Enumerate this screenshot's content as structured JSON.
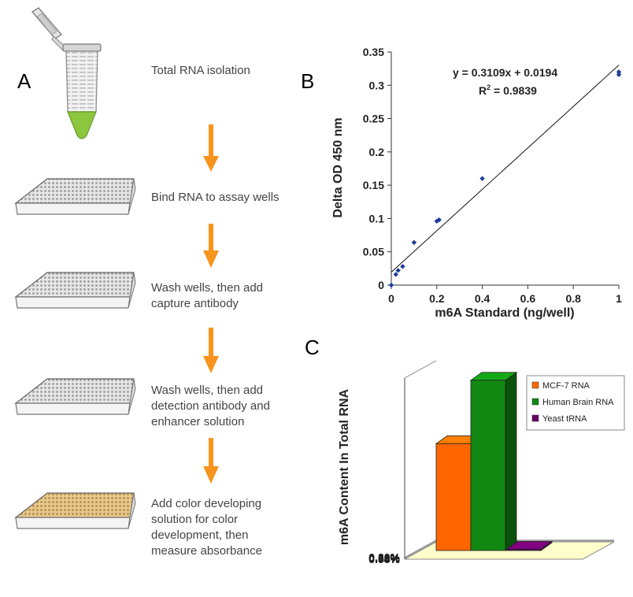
{
  "panels": {
    "a": "A",
    "b": "B",
    "c": "C"
  },
  "steps": [
    {
      "lines": [
        "Total RNA isolation"
      ]
    },
    {
      "lines": [
        "Bind RNA to assay wells"
      ]
    },
    {
      "lines": [
        "Wash wells, then add",
        "capture antibody"
      ]
    },
    {
      "lines": [
        "Wash wells, then add",
        "detection antibody and",
        "enhancer solution"
      ]
    },
    {
      "lines": [
        "Add color developing",
        "solution for color",
        "development, then",
        "measure absorbance"
      ]
    }
  ],
  "icons": [
    "microcentrifuge-tube-icon",
    "well-plate-icon",
    "down-arrow-icon"
  ],
  "colors": {
    "arrow": "#F7941D",
    "tube_liquid": "#8CC63F",
    "developed_wells": "#E8C98C",
    "scatter_points": "#1F3C99"
  },
  "chart_data": [
    {
      "type": "scatter",
      "xlabel": "m6A Standard (ng/well)",
      "ylabel": "Delta OD 450 nm",
      "xlim": [
        0,
        1
      ],
      "ylim": [
        0,
        0.35
      ],
      "xticks": [
        "0",
        "0.2",
        "0.4",
        "0.6",
        "0.8",
        "1"
      ],
      "yticks": [
        "0",
        "0.05",
        "0.1",
        "0.15",
        "0.2",
        "0.25",
        "0.3",
        "0.35"
      ],
      "points": [
        {
          "x": 0,
          "y": 0.0
        },
        {
          "x": 0.02,
          "y": 0.016
        },
        {
          "x": 0.03,
          "y": 0.022
        },
        {
          "x": 0.05,
          "y": 0.028
        },
        {
          "x": 0.1,
          "y": 0.064
        },
        {
          "x": 0.2,
          "y": 0.096
        },
        {
          "x": 0.21,
          "y": 0.098
        },
        {
          "x": 0.4,
          "y": 0.16
        },
        {
          "x": 1,
          "y": 0.32
        },
        {
          "x": 1,
          "y": 0.316
        }
      ],
      "trendline": {
        "slope": 0.3109,
        "intercept": 0.0194
      },
      "equation": "y = 0.3109x + 0.0194",
      "r2_label": "R",
      "r2_sup": "2",
      "r2_value": " = 0.9839",
      "grid": false
    },
    {
      "type": "bar",
      "style": "3d",
      "ylabel": "m6A Content In Total RNA",
      "ylim": [
        0,
        0.2
      ],
      "yticks": [
        "0.00%",
        "0.04%",
        "0.08%",
        "0.12%",
        "0.16%",
        "0.20%"
      ],
      "series": [
        {
          "name": "MCF-7 RNA",
          "value": 0.118,
          "color": "#FF6600"
        },
        {
          "name": "Human Brain RNA",
          "value": 0.188,
          "color": "#118811"
        },
        {
          "name": "Yeast tRNA",
          "value": 0.0005,
          "color": "#660066"
        }
      ],
      "legend_position": "top-right",
      "grid": true
    }
  ]
}
